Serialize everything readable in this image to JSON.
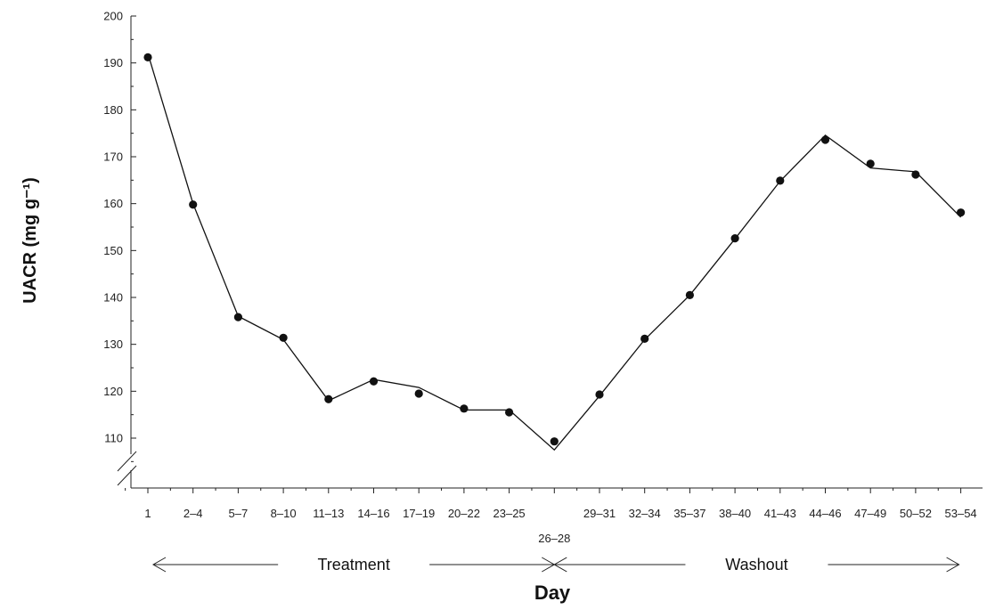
{
  "chart_data": {
    "type": "line",
    "title": "",
    "xlabel": "Day",
    "ylabel": "UACR (mg g⁻¹)",
    "ylim": [
      100,
      200
    ],
    "yticks": [
      110,
      120,
      130,
      140,
      150,
      160,
      170,
      180,
      190,
      200
    ],
    "y_axis_break": true,
    "grid": false,
    "categories": [
      "1",
      "2–4",
      "5–7",
      "8–10",
      "11–13",
      "14–16",
      "17–19",
      "20–22",
      "23–25",
      "26–28",
      "29–31",
      "32–34",
      "35–37",
      "38–40",
      "41–43",
      "44–46",
      "47–49",
      "50–52",
      "53–54"
    ],
    "series": [
      {
        "points": [
          191.2,
          159.8,
          135.8,
          131.4,
          118.3,
          122.1,
          119.5,
          116.3,
          115.5,
          109.3,
          119.3,
          131.2,
          140.5,
          152.6,
          164.9,
          173.6,
          168.5,
          166.2,
          158.1
        ],
        "line": [
          192,
          160,
          136,
          131,
          118,
          122.5,
          120.8,
          116,
          116,
          107.5,
          119,
          131,
          140.5,
          152.5,
          164.8,
          174.6,
          167.6,
          166.8,
          157.1
        ]
      }
    ],
    "phases": [
      {
        "label": "Treatment",
        "from": "1",
        "to": "26–28"
      },
      {
        "label": "Washout",
        "from": "26–28",
        "to": "53–54"
      }
    ]
  }
}
